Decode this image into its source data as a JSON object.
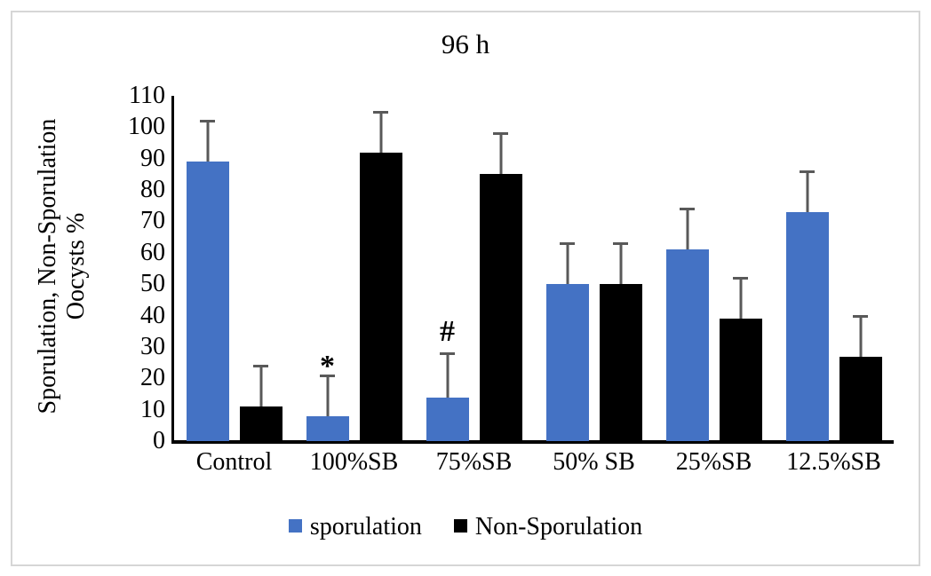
{
  "chart_data": {
    "type": "bar",
    "title": "96 h",
    "categories": [
      "Control",
      "100%SB",
      "75%SB",
      "50% SB",
      "25%SB",
      "12.5%SB"
    ],
    "series": [
      {
        "name": "sporulation",
        "color": "#4472c4",
        "values": [
          89,
          8,
          14,
          50,
          61,
          73
        ],
        "errors": [
          13,
          13,
          14,
          13,
          13,
          13
        ],
        "annotations": [
          "",
          "*",
          "#",
          "",
          "",
          ""
        ]
      },
      {
        "name": "Non-Sporulation",
        "color": "#000000",
        "values": [
          11,
          92,
          85,
          50,
          39,
          27
        ],
        "errors": [
          13,
          13,
          13,
          13,
          13,
          13
        ],
        "annotations": [
          "",
          "",
          "",
          "",
          "",
          ""
        ]
      }
    ],
    "ylabel_lines": [
      "Sporulation, Non-Sporulation",
      "Oocysts %"
    ],
    "ylim": [
      0,
      110
    ],
    "yticks": [
      0,
      10,
      20,
      30,
      40,
      50,
      60,
      70,
      80,
      90,
      100,
      110
    ],
    "error_bar_color": "#595959",
    "axis_color": "#000000",
    "frame_color": "#d6d6d6",
    "grid": false,
    "legend_position": "bottom"
  }
}
